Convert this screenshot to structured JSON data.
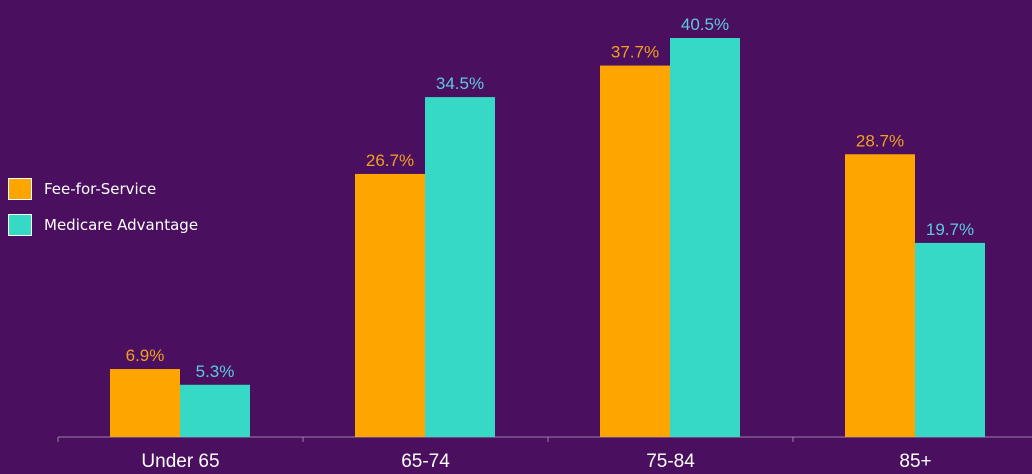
{
  "chart_data": {
    "type": "bar",
    "categories": [
      "Under 65",
      "65-74",
      "75-84",
      "85+"
    ],
    "series": [
      {
        "name": "Fee-for-Service",
        "color": "#ffa500",
        "values": [
          6.9,
          26.7,
          37.7,
          28.7
        ],
        "labels": [
          "6.9%",
          "26.7%",
          "37.7%",
          "28.7%"
        ]
      },
      {
        "name": "Medicare Advantage",
        "color": "#36d8c6",
        "values": [
          5.3,
          34.5,
          40.5,
          19.7
        ],
        "labels": [
          "5.3%",
          "34.5%",
          "40.5%",
          "19.7%"
        ]
      }
    ],
    "ylim": [
      0,
      40.5
    ],
    "legend_position": "left",
    "grid": false
  },
  "colors": {
    "background": "#4a0f5e",
    "axis": "#9a7fa6",
    "fee_label": "#f0a020",
    "ma_label": "#5fc8e0"
  }
}
